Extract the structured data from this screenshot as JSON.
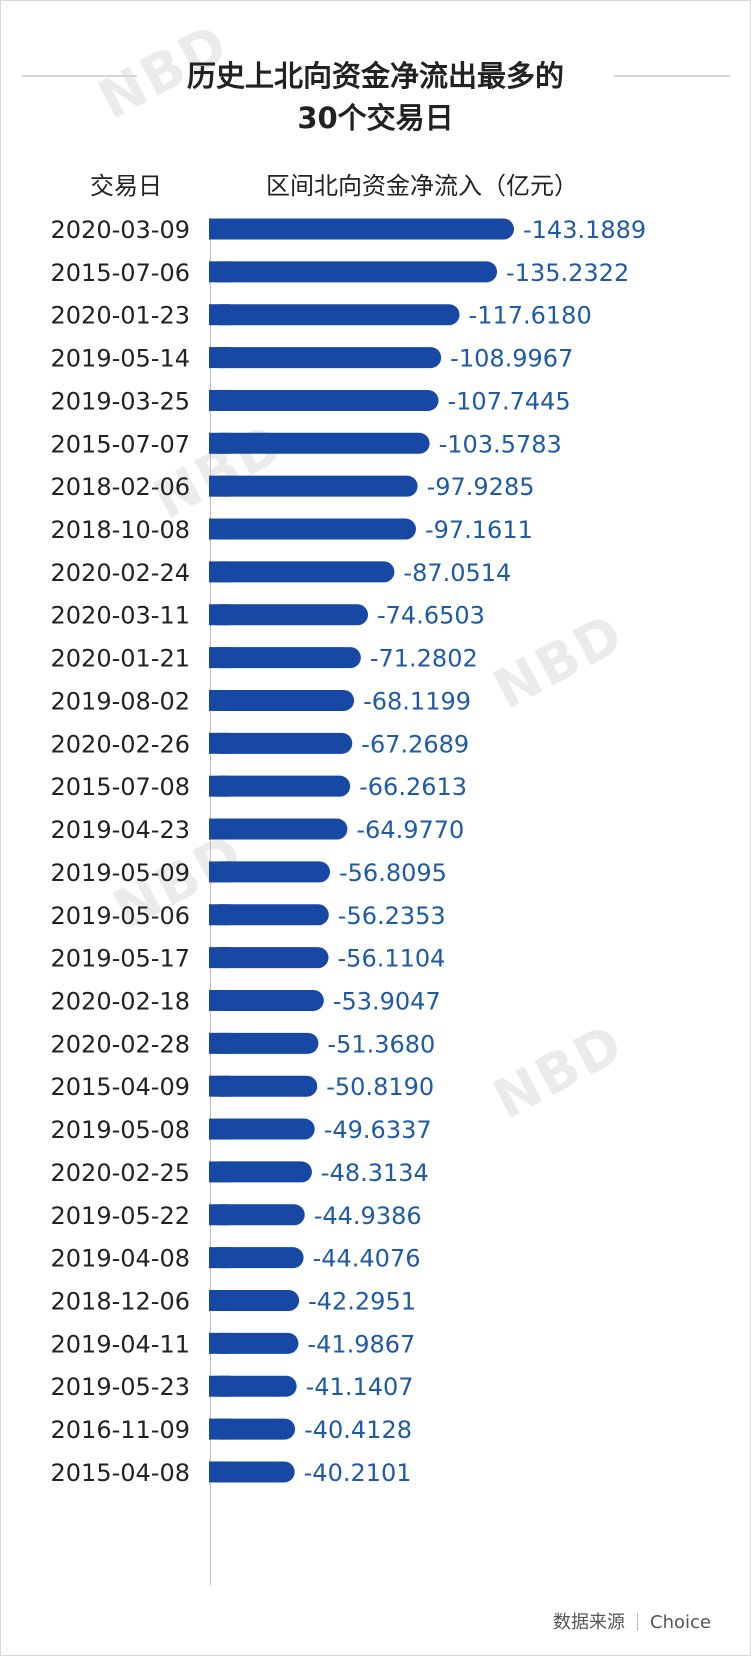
{
  "title_line1": "历史上北向资金净流出最多的",
  "title_line2": "30个交易日",
  "header_date": "交易日",
  "header_value": "区间北向资金净流入（亿元）",
  "footer_source_label": "数据来源",
  "footer_source": "Choice",
  "watermark": "NBD",
  "colors": {
    "bar": "#1648a4",
    "value_text": "#1f5aa6",
    "label_text": "#222222"
  },
  "chart_data": {
    "type": "bar",
    "orientation": "horizontal",
    "title": "历史上北向资金净流出最多的30个交易日",
    "xlabel": "区间北向资金净流入（亿元）",
    "ylabel": "交易日",
    "categories": [
      "2020-03-09",
      "2015-07-06",
      "2020-01-23",
      "2019-05-14",
      "2019-03-25",
      "2015-07-07",
      "2018-02-06",
      "2018-10-08",
      "2020-02-24",
      "2020-03-11",
      "2020-01-21",
      "2019-08-02",
      "2020-02-26",
      "2015-07-08",
      "2019-04-23",
      "2019-05-09",
      "2019-05-06",
      "2019-05-17",
      "2020-02-18",
      "2020-02-28",
      "2015-04-09",
      "2019-05-08",
      "2020-02-25",
      "2019-05-22",
      "2019-04-08",
      "2018-12-06",
      "2019-04-11",
      "2019-05-23",
      "2016-11-09",
      "2015-04-08"
    ],
    "values": [
      -143.1889,
      -135.2322,
      -117.618,
      -108.9967,
      -107.7445,
      -103.5783,
      -97.9285,
      -97.1611,
      -87.0514,
      -74.6503,
      -71.2802,
      -68.1199,
      -67.2689,
      -66.2613,
      -64.977,
      -56.8095,
      -56.2353,
      -56.1104,
      -53.9047,
      -51.368,
      -50.819,
      -49.6337,
      -48.3134,
      -44.9386,
      -44.4076,
      -42.2951,
      -41.9867,
      -41.1407,
      -40.4128,
      -40.2101
    ],
    "value_labels": [
      "-143.1889",
      "-135.2322",
      "-117.6180",
      "-108.9967",
      "-107.7445",
      "-103.5783",
      "-97.9285",
      "-97.1611",
      "-87.0514",
      "-74.6503",
      "-71.2802",
      "-68.1199",
      "-67.2689",
      "-66.2613",
      "-64.9770",
      "-56.8095",
      "-56.2353",
      "-56.1104",
      "-53.9047",
      "-51.3680",
      "-50.8190",
      "-49.6337",
      "-48.3134",
      "-44.9386",
      "-44.4076",
      "-42.2951",
      "-41.9867",
      "-41.1407",
      "-40.4128",
      "-40.2101"
    ]
  }
}
